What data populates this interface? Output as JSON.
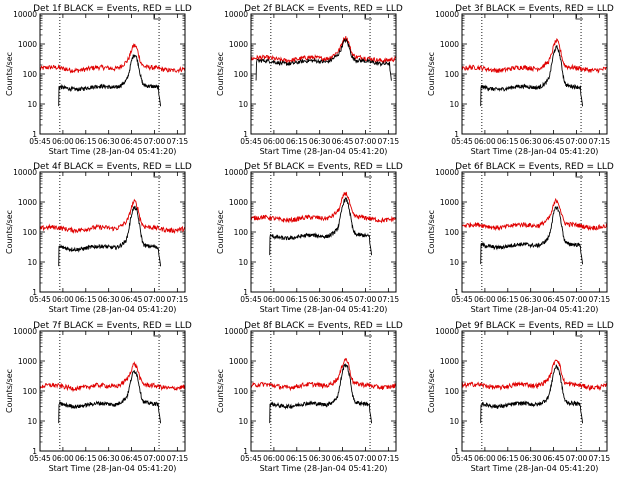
{
  "chart_data": {
    "type": "line",
    "shared": {
      "x_ticks": [
        "05:45",
        "06:00",
        "06:15",
        "06:30",
        "06:45",
        "07:00",
        "07:15"
      ],
      "xlim_minutes_after_0545": [
        0,
        95
      ],
      "ylim": [
        1,
        10000
      ],
      "y_scale": "log",
      "y_ticks": [
        "1",
        "10",
        "100",
        "1000",
        "10000"
      ],
      "xlabel": "Start Time (28-Jan-04 05:41:20)",
      "ylabel": "Counts/sec",
      "series_colors": {
        "events": "#000000",
        "lld": "#e00000"
      },
      "markers_minutes_after_0545": {
        "saa_exit": 13,
        "saa_entry": 78
      }
    },
    "panels": [
      {
        "title": "Det 1f BLACK = Events, RED = LLD",
        "events_level": 35,
        "events_peak": 380,
        "lld_level": 150,
        "lld_peak": 650,
        "start": 12,
        "end": 79
      },
      {
        "title": "Det 2f BLACK = Events, RED = LLD",
        "events_level": 250,
        "events_peak": 900,
        "lld_level": 320,
        "lld_peak": 1100,
        "start": 3,
        "end": 92
      },
      {
        "title": "Det 3f BLACK = Events, RED = LLD",
        "events_level": 35,
        "events_peak": 700,
        "lld_level": 150,
        "lld_peak": 1000,
        "start": 12,
        "end": 79
      },
      {
        "title": "Det 4f BLACK = Events, RED = LLD",
        "events_level": 30,
        "events_peak": 600,
        "lld_level": 130,
        "lld_peak": 800,
        "start": 12,
        "end": 79
      },
      {
        "title": "Det 5f BLACK = Events, RED = LLD",
        "events_level": 70,
        "events_peak": 1100,
        "lld_level": 280,
        "lld_peak": 1500,
        "start": 12,
        "end": 79
      },
      {
        "title": "Det 6f BLACK = Events, RED = LLD",
        "events_level": 35,
        "events_peak": 600,
        "lld_level": 160,
        "lld_peak": 850,
        "start": 12,
        "end": 79
      },
      {
        "title": "Det 7f BLACK = Events, RED = LLD",
        "events_level": 35,
        "events_peak": 400,
        "lld_level": 140,
        "lld_peak": 550,
        "start": 12,
        "end": 79
      },
      {
        "title": "Det 8f BLACK = Events, RED = LLD",
        "events_level": 35,
        "events_peak": 700,
        "lld_level": 150,
        "lld_peak": 900,
        "start": 12,
        "end": 79
      },
      {
        "title": "Det 9f BLACK = Events, RED = LLD",
        "events_level": 35,
        "events_peak": 600,
        "lld_level": 150,
        "lld_peak": 900,
        "start": 12,
        "end": 79
      }
    ]
  }
}
